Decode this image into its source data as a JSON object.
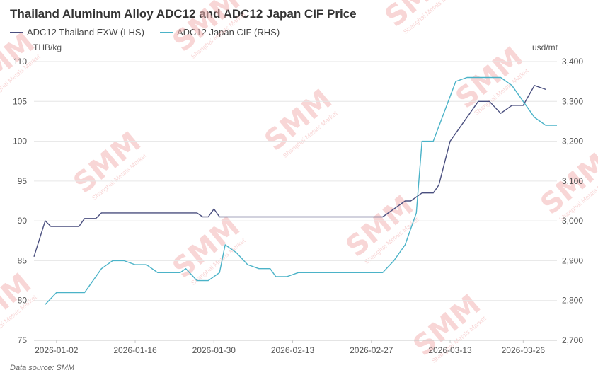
{
  "title": "Thailand Aluminum Alloy ADC12 and ADC12 Japan CIF Price",
  "source": "Data source:  SMM",
  "watermark": "SMM",
  "watermark_sub": "Shanghai Metals Market",
  "colors": {
    "series_left": "#4a4f7f",
    "series_right": "#4bb3c8",
    "grid": "#e6e6e6",
    "axis": "#c8c8c8",
    "watermark": "#f3b6b6"
  },
  "chart_data": {
    "type": "line",
    "title": "Thailand Aluminum Alloy ADC12 and ADC12 Japan CIF Price",
    "y_left": {
      "label": "THB/kg",
      "range": [
        75,
        110
      ],
      "ticks": [
        "75",
        "80",
        "85",
        "90",
        "95",
        "100",
        "105",
        "110"
      ]
    },
    "y_right": {
      "label": "usd/mt",
      "range": [
        2700,
        3400
      ],
      "ticks": [
        "2,700",
        "2,800",
        "2,900",
        "3,000",
        "3,100",
        "3,200",
        "3,300",
        "3,400"
      ]
    },
    "x": {
      "range": [
        "2025-12-29",
        "2026-04-01"
      ],
      "ticks": [
        "2026-01-02",
        "2026-01-16",
        "2026-01-30",
        "2026-02-13",
        "2026-02-27",
        "2026-03-13",
        "2026-03-26"
      ]
    },
    "grid": true,
    "legend_position": "top-left",
    "series": [
      {
        "name": "ADC12 Thailand EXW (LHS)",
        "axis": "left",
        "points": [
          [
            "2025-12-29",
            85.5
          ],
          [
            "2025-12-31",
            90.0
          ],
          [
            "2026-01-01",
            89.3
          ],
          [
            "2026-01-02",
            89.3
          ],
          [
            "2026-01-06",
            89.3
          ],
          [
            "2026-01-07",
            90.3
          ],
          [
            "2026-01-09",
            90.3
          ],
          [
            "2026-01-10",
            91.0
          ],
          [
            "2026-01-12",
            91.0
          ],
          [
            "2026-01-27",
            91.0
          ],
          [
            "2026-01-28",
            90.5
          ],
          [
            "2026-01-29",
            90.5
          ],
          [
            "2026-01-30",
            91.5
          ],
          [
            "2026-01-31",
            90.5
          ],
          [
            "2026-02-01",
            90.5
          ],
          [
            "2026-03-01",
            90.5
          ],
          [
            "2026-03-03",
            91.5
          ],
          [
            "2026-03-05",
            92.5
          ],
          [
            "2026-03-06",
            92.5
          ],
          [
            "2026-03-08",
            93.5
          ],
          [
            "2026-03-10",
            93.5
          ],
          [
            "2026-03-11",
            94.5
          ],
          [
            "2026-03-13",
            100.0
          ],
          [
            "2026-03-16",
            103.0
          ],
          [
            "2026-03-18",
            105.0
          ],
          [
            "2026-03-20",
            105.0
          ],
          [
            "2026-03-22",
            103.5
          ],
          [
            "2026-03-24",
            104.5
          ],
          [
            "2026-03-26",
            104.5
          ],
          [
            "2026-03-28",
            107.0
          ],
          [
            "2026-03-30",
            106.5
          ]
        ]
      },
      {
        "name": "ADC12 Japan CIF (RHS)",
        "axis": "right",
        "points": [
          [
            "2025-12-31",
            2790
          ],
          [
            "2026-01-02",
            2820
          ],
          [
            "2026-01-06",
            2820
          ],
          [
            "2026-01-07",
            2820
          ],
          [
            "2026-01-10",
            2880
          ],
          [
            "2026-01-12",
            2900
          ],
          [
            "2026-01-14",
            2900
          ],
          [
            "2026-01-16",
            2890
          ],
          [
            "2026-01-18",
            2890
          ],
          [
            "2026-01-20",
            2870
          ],
          [
            "2026-01-24",
            2870
          ],
          [
            "2026-01-25",
            2880
          ],
          [
            "2026-01-27",
            2850
          ],
          [
            "2026-01-29",
            2850
          ],
          [
            "2026-01-31",
            2870
          ],
          [
            "2026-02-01",
            2940
          ],
          [
            "2026-02-03",
            2920
          ],
          [
            "2026-02-05",
            2890
          ],
          [
            "2026-02-07",
            2880
          ],
          [
            "2026-02-09",
            2880
          ],
          [
            "2026-02-10",
            2860
          ],
          [
            "2026-02-12",
            2860
          ],
          [
            "2026-02-14",
            2870
          ],
          [
            "2026-02-28",
            2870
          ],
          [
            "2026-03-01",
            2870
          ],
          [
            "2026-03-03",
            2900
          ],
          [
            "2026-03-05",
            2940
          ],
          [
            "2026-03-06",
            2980
          ],
          [
            "2026-03-07",
            3020
          ],
          [
            "2026-03-08",
            3200
          ],
          [
            "2026-03-10",
            3200
          ],
          [
            "2026-03-14",
            3350
          ],
          [
            "2026-03-16",
            3360
          ],
          [
            "2026-03-22",
            3360
          ],
          [
            "2026-03-24",
            3340
          ],
          [
            "2026-03-26",
            3300
          ],
          [
            "2026-03-28",
            3260
          ],
          [
            "2026-03-30",
            3240
          ],
          [
            "2026-04-01",
            3240
          ]
        ]
      }
    ]
  }
}
